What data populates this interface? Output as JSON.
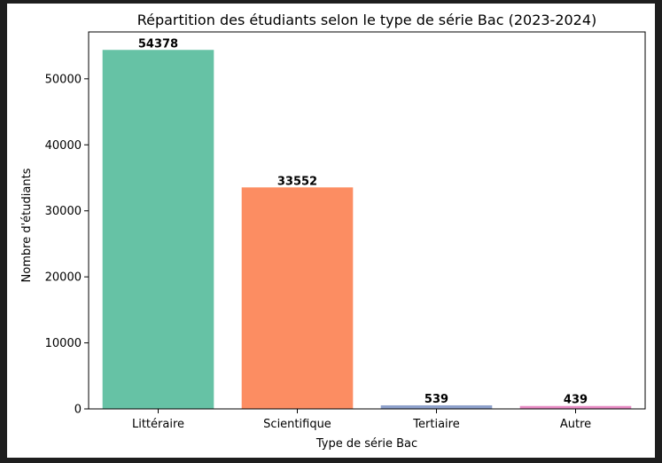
{
  "chart_data": {
    "type": "bar",
    "title": "Répartition des étudiants selon le type de série Bac (2023-2024)",
    "xlabel": "Type de série Bac",
    "ylabel": "Nombre d'étudiants",
    "categories": [
      "Littéraire",
      "Scientifique",
      "Tertiaire",
      "Autre"
    ],
    "values": [
      54378,
      33552,
      539,
      439
    ],
    "data_labels": [
      "54378",
      "33552",
      "539",
      "439"
    ],
    "colors": [
      "#66c2a5",
      "#fc8d62",
      "#8da0cb",
      "#e78ac3"
    ],
    "ylim": [
      0,
      57100
    ],
    "yticks": [
      0,
      10000,
      20000,
      30000,
      40000,
      50000
    ],
    "ytick_labels": [
      "0",
      "10000",
      "20000",
      "30000",
      "40000",
      "50000"
    ],
    "grid": false,
    "legend": "none"
  }
}
